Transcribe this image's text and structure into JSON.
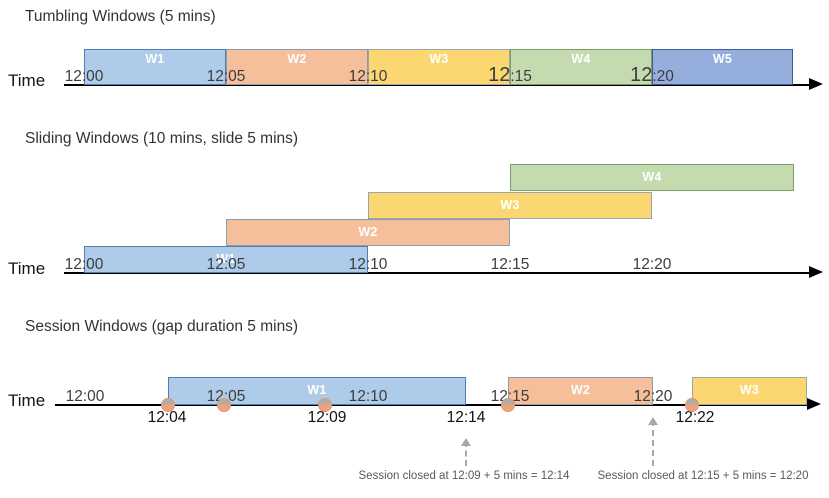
{
  "colors": {
    "blue": {
      "fill": "#AECBE9",
      "border": "#4E7FB2"
    },
    "orange": {
      "fill": "#F6BF9C",
      "border": "#8E9BAD"
    },
    "yellow": {
      "fill": "#FBD772",
      "border": "#9AA5B1"
    },
    "green": {
      "fill": "#C4DBB0",
      "border": "#7E9A69"
    },
    "indigo": {
      "fill": "#95AEDC",
      "border": "#3D5C9E"
    },
    "event_dot_top": "#B2ACA6",
    "event_dot_bottom": "#F2A17D",
    "event_dot_border": "#D99A72",
    "axis": "#000000",
    "annotation_text": "#595959"
  },
  "sections": [
    {
      "id": "tumbling",
      "title": "Tumbling Windows (5 mins)",
      "time_label": "Time",
      "axis_labels": [
        {
          "text": "12:00"
        },
        {
          "text": "12:05"
        },
        {
          "text": "12:10"
        },
        {
          "text": "12:15",
          "big_prefix": true
        },
        {
          "text": "12:20",
          "big_prefix": true
        }
      ],
      "windows": [
        {
          "label": "W1",
          "color": "blue",
          "start": "12:00",
          "end": "12:05"
        },
        {
          "label": "W2",
          "color": "orange",
          "start": "12:05",
          "end": "12:10"
        },
        {
          "label": "W3",
          "color": "yellow",
          "start": "12:10",
          "end": "12:15"
        },
        {
          "label": "W4",
          "color": "green",
          "start": "12:15",
          "end": "12:20"
        },
        {
          "label": "W5",
          "color": "indigo",
          "start": "12:20",
          "end": "12:25"
        }
      ]
    },
    {
      "id": "sliding",
      "title": "Sliding Windows (10 mins, slide 5 mins)",
      "time_label": "Time",
      "axis_labels": [
        {
          "text": "12:00"
        },
        {
          "text": "12:05"
        },
        {
          "text": "12:10"
        },
        {
          "text": "12:15"
        },
        {
          "text": "12:20"
        }
      ],
      "windows": [
        {
          "label": "W1",
          "color": "blue",
          "start": "12:00",
          "end": "12:10"
        },
        {
          "label": "W2",
          "color": "orange",
          "start": "12:05",
          "end": "12:15"
        },
        {
          "label": "W3",
          "color": "yellow",
          "start": "12:10",
          "end": "12:20"
        },
        {
          "label": "W4",
          "color": "green",
          "start": "12:15",
          "end": "12:25"
        }
      ]
    },
    {
      "id": "session",
      "title": "Session Windows (gap duration 5 mins)",
      "time_label": "Time",
      "axis_labels": [
        {
          "text": "12:00"
        },
        {
          "text": "12:05"
        },
        {
          "text": "12:10"
        },
        {
          "text": "12:15"
        },
        {
          "text": "12:20"
        }
      ],
      "windows": [
        {
          "label": "W1",
          "color": "blue",
          "start": "12:04",
          "end": "12:14"
        },
        {
          "label": "W2",
          "color": "orange",
          "start": "12:15",
          "end": "12:20"
        },
        {
          "label": "W3",
          "color": "yellow",
          "start": "12:22",
          "end": ""
        }
      ],
      "event_labels": [
        {
          "text": "12:04"
        },
        {
          "text": "12:09"
        },
        {
          "text": "12:14"
        },
        {
          "text": "12:22"
        }
      ],
      "annotations": [
        {
          "text": "Session closed at 12:09 + 5 mins = 12:14"
        },
        {
          "text": "Session closed at 12:15 + 5 mins = 12:20"
        }
      ]
    }
  ]
}
